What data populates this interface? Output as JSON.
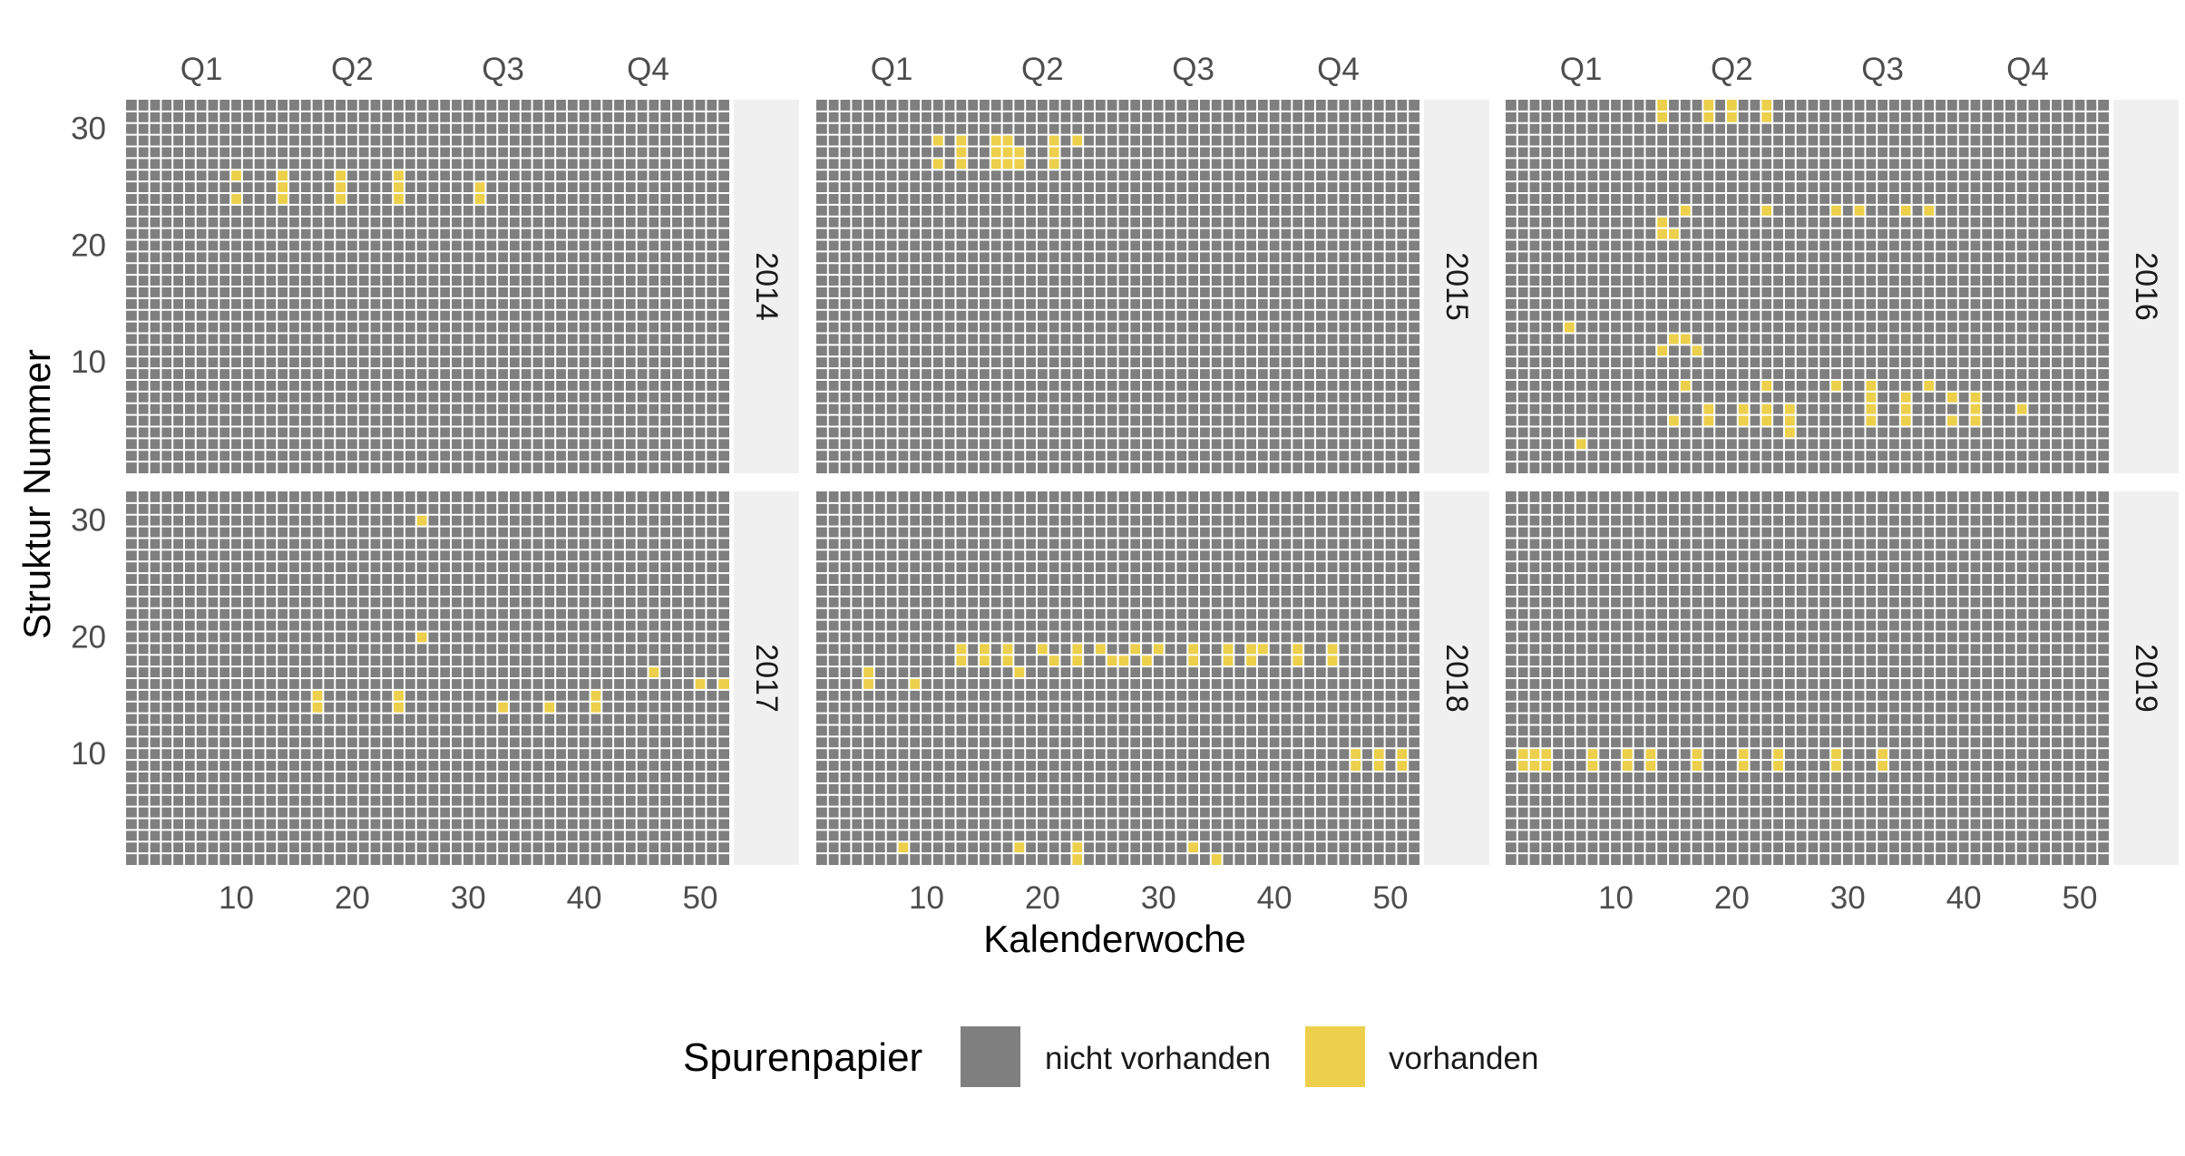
{
  "chart_data": {
    "type": "heatmap",
    "title": "",
    "xlabel": "Kalenderwoche",
    "ylabel": "Struktur Nummer",
    "x_range": [
      1,
      52
    ],
    "y_range": [
      1,
      32
    ],
    "x_ticks": [
      10,
      20,
      30,
      40,
      50
    ],
    "y_ticks": [
      10,
      20,
      30
    ],
    "quarter_labels": [
      {
        "label": "Q1",
        "week": 7
      },
      {
        "label": "Q2",
        "week": 20
      },
      {
        "label": "Q3",
        "week": 33
      },
      {
        "label": "Q4",
        "week": 45.5
      }
    ],
    "legend": {
      "title": "Spurenpapier",
      "placement": "bottom",
      "items": [
        {
          "label": "nicht vorhanden",
          "color": "#7f7f7f"
        },
        {
          "label": "vorhanden",
          "color": "#eccf4b"
        }
      ]
    },
    "colors": {
      "absent": "#7f7f7f",
      "present": "#eccf4b",
      "strip": "#f0f0f0",
      "grid_line": "#ffffff"
    },
    "panels": [
      {
        "year": "2014",
        "present": [
          [
            10,
            26
          ],
          [
            10,
            24
          ],
          [
            14,
            26
          ],
          [
            14,
            25
          ],
          [
            14,
            24
          ],
          [
            19,
            26
          ],
          [
            19,
            25
          ],
          [
            19,
            24
          ],
          [
            24,
            26
          ],
          [
            24,
            25
          ],
          [
            24,
            24
          ],
          [
            31,
            25
          ],
          [
            31,
            24
          ]
        ]
      },
      {
        "year": "2015",
        "present": [
          [
            11,
            29
          ],
          [
            11,
            27
          ],
          [
            13,
            29
          ],
          [
            13,
            28
          ],
          [
            13,
            27
          ],
          [
            16,
            29
          ],
          [
            16,
            28
          ],
          [
            16,
            27
          ],
          [
            17,
            29
          ],
          [
            17,
            28
          ],
          [
            17,
            27
          ],
          [
            18,
            28
          ],
          [
            18,
            27
          ],
          [
            21,
            29
          ],
          [
            21,
            28
          ],
          [
            21,
            27
          ],
          [
            23,
            29
          ]
        ]
      },
      {
        "year": "2016",
        "present": [
          [
            14,
            32
          ],
          [
            14,
            31
          ],
          [
            18,
            32
          ],
          [
            18,
            31
          ],
          [
            20,
            32
          ],
          [
            20,
            31
          ],
          [
            23,
            32
          ],
          [
            23,
            31
          ],
          [
            16,
            23
          ],
          [
            23,
            23
          ],
          [
            29,
            23
          ],
          [
            31,
            23
          ],
          [
            35,
            23
          ],
          [
            37,
            23
          ],
          [
            14,
            22
          ],
          [
            14,
            21
          ],
          [
            15,
            21
          ],
          [
            6,
            13
          ],
          [
            15,
            12
          ],
          [
            16,
            12
          ],
          [
            14,
            11
          ],
          [
            17,
            11
          ],
          [
            16,
            8
          ],
          [
            23,
            8
          ],
          [
            29,
            8
          ],
          [
            32,
            8
          ],
          [
            37,
            8
          ],
          [
            32,
            7
          ],
          [
            35,
            7
          ],
          [
            39,
            7
          ],
          [
            41,
            7
          ],
          [
            18,
            6
          ],
          [
            21,
            6
          ],
          [
            23,
            6
          ],
          [
            25,
            6
          ],
          [
            32,
            6
          ],
          [
            35,
            6
          ],
          [
            41,
            6
          ],
          [
            45,
            6
          ],
          [
            15,
            5
          ],
          [
            18,
            5
          ],
          [
            21,
            5
          ],
          [
            23,
            5
          ],
          [
            25,
            5
          ],
          [
            32,
            5
          ],
          [
            35,
            5
          ],
          [
            39,
            5
          ],
          [
            41,
            5
          ],
          [
            25,
            4
          ],
          [
            7,
            3
          ]
        ]
      },
      {
        "year": "2017",
        "present": [
          [
            26,
            30
          ],
          [
            26,
            20
          ],
          [
            46,
            17
          ],
          [
            50,
            16
          ],
          [
            52,
            16
          ],
          [
            17,
            15
          ],
          [
            24,
            15
          ],
          [
            41,
            15
          ],
          [
            17,
            14
          ],
          [
            24,
            14
          ],
          [
            33,
            14
          ],
          [
            37,
            14
          ],
          [
            41,
            14
          ]
        ]
      },
      {
        "year": "2018",
        "present": [
          [
            13,
            19
          ],
          [
            15,
            19
          ],
          [
            17,
            19
          ],
          [
            20,
            19
          ],
          [
            23,
            19
          ],
          [
            25,
            19
          ],
          [
            28,
            19
          ],
          [
            30,
            19
          ],
          [
            33,
            19
          ],
          [
            36,
            19
          ],
          [
            38,
            19
          ],
          [
            39,
            19
          ],
          [
            42,
            19
          ],
          [
            45,
            19
          ],
          [
            13,
            18
          ],
          [
            15,
            18
          ],
          [
            17,
            18
          ],
          [
            21,
            18
          ],
          [
            23,
            18
          ],
          [
            26,
            18
          ],
          [
            27,
            18
          ],
          [
            29,
            18
          ],
          [
            33,
            18
          ],
          [
            36,
            18
          ],
          [
            38,
            18
          ],
          [
            42,
            18
          ],
          [
            45,
            18
          ],
          [
            5,
            17
          ],
          [
            18,
            17
          ],
          [
            5,
            16
          ],
          [
            9,
            16
          ],
          [
            47,
            10
          ],
          [
            49,
            10
          ],
          [
            51,
            10
          ],
          [
            47,
            9
          ],
          [
            49,
            9
          ],
          [
            51,
            9
          ],
          [
            8,
            2
          ],
          [
            18,
            2
          ],
          [
            23,
            2
          ],
          [
            33,
            2
          ],
          [
            23,
            1
          ],
          [
            35,
            1
          ]
        ]
      },
      {
        "year": "2019",
        "present": [
          [
            2,
            10
          ],
          [
            3,
            10
          ],
          [
            4,
            10
          ],
          [
            8,
            10
          ],
          [
            11,
            10
          ],
          [
            13,
            10
          ],
          [
            17,
            10
          ],
          [
            21,
            10
          ],
          [
            24,
            10
          ],
          [
            29,
            10
          ],
          [
            33,
            10
          ],
          [
            2,
            9
          ],
          [
            3,
            9
          ],
          [
            4,
            9
          ],
          [
            8,
            9
          ],
          [
            11,
            9
          ],
          [
            13,
            9
          ],
          [
            17,
            9
          ],
          [
            21,
            9
          ],
          [
            24,
            9
          ],
          [
            29,
            9
          ],
          [
            33,
            9
          ]
        ]
      }
    ]
  }
}
